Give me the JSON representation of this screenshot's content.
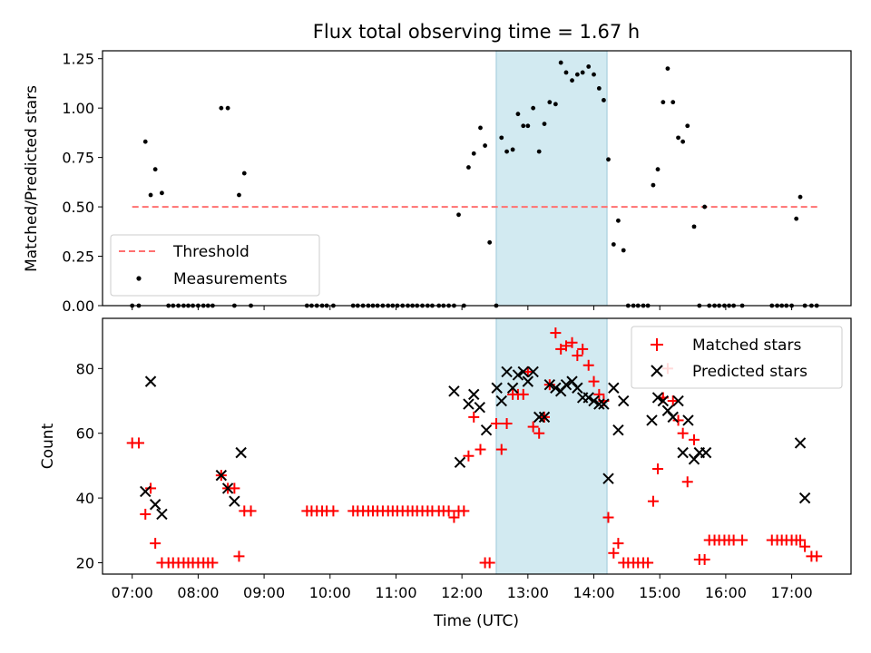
{
  "chart_data": [
    {
      "type": "scatter",
      "title": "Flux total observing time = 1.67 h",
      "xlabel": "",
      "ylabel": "Matched/Predicted stars",
      "xlim": [
        6.55,
        17.9
      ],
      "ylim": [
        0,
        1.29
      ],
      "yticks": [
        0,
        0.25,
        0.5,
        0.75,
        1.0,
        1.25
      ],
      "ytick_labels": [
        "0.00",
        "0.25",
        "0.50",
        "0.75",
        "1.00",
        "1.25"
      ],
      "highlight_span": [
        12.52,
        14.2
      ],
      "threshold": {
        "label": "Threshold",
        "value": 0.5,
        "x_start": 7.0,
        "x_end": 17.4,
        "color": "#ff7070"
      },
      "legend_position": "lower-left",
      "series": [
        {
          "name": "Measurements",
          "color": "#000000",
          "x": [
            7.0,
            7.1,
            7.2,
            7.28,
            7.35,
            7.45,
            7.55,
            7.62,
            7.7,
            7.78,
            7.85,
            7.92,
            8.0,
            8.08,
            8.15,
            8.22,
            8.35,
            8.45,
            8.55,
            8.62,
            8.7,
            8.8,
            9.65,
            9.72,
            9.8,
            9.88,
            9.95,
            10.05,
            10.35,
            10.42,
            10.5,
            10.58,
            10.65,
            10.72,
            10.8,
            10.88,
            10.95,
            11.02,
            11.1,
            11.18,
            11.25,
            11.32,
            11.4,
            11.48,
            11.55,
            11.65,
            11.72,
            11.8,
            11.88,
            11.95,
            12.03,
            12.1,
            12.18,
            12.28,
            12.35,
            12.42,
            12.52,
            12.6,
            12.68,
            12.77,
            12.85,
            12.93,
            13.0,
            13.08,
            13.17,
            13.25,
            13.33,
            13.42,
            13.5,
            13.58,
            13.67,
            13.75,
            13.83,
            13.92,
            14.0,
            14.08,
            14.15,
            14.22,
            14.3,
            14.37,
            14.45,
            14.52,
            14.6,
            14.67,
            14.75,
            14.82,
            14.9,
            14.97,
            15.05,
            15.12,
            15.2,
            15.28,
            15.35,
            15.42,
            15.52,
            15.6,
            15.68,
            15.75,
            15.83,
            15.9,
            15.98,
            16.05,
            16.12,
            16.25,
            16.7,
            16.78,
            16.85,
            16.92,
            17.0,
            17.07,
            17.13,
            17.2,
            17.3,
            17.38
          ],
          "y": [
            0,
            0,
            0.83,
            0.56,
            0.69,
            0.57,
            0,
            0,
            0,
            0,
            0,
            0,
            0,
            0,
            0,
            0,
            1.0,
            1.0,
            0,
            0.56,
            0.67,
            0,
            0,
            0,
            0,
            0,
            0,
            0,
            0,
            0,
            0,
            0,
            0,
            0,
            0,
            0,
            0,
            0,
            0,
            0,
            0,
            0,
            0,
            0,
            0,
            0,
            0,
            0,
            0,
            0.46,
            0,
            0.7,
            0.77,
            0.9,
            0.81,
            0.32,
            0,
            0.85,
            0.78,
            0.79,
            0.97,
            0.91,
            0.91,
            1.0,
            0.78,
            0.92,
            1.03,
            1.02,
            1.23,
            1.18,
            1.14,
            1.17,
            1.18,
            1.21,
            1.17,
            1.1,
            1.04,
            0.74,
            0.31,
            0.43,
            0.28,
            0,
            0,
            0,
            0,
            0,
            0.61,
            0.69,
            1.03,
            1.2,
            1.03,
            0.85,
            0.83,
            0.91,
            0.4,
            0,
            0.5,
            0,
            0,
            0,
            0,
            0,
            0,
            0,
            0,
            0,
            0,
            0,
            0,
            0.44,
            0.55,
            0,
            0,
            0
          ]
        }
      ]
    },
    {
      "type": "scatter",
      "title": "",
      "xlabel": "Time (UTC)",
      "ylabel": "Count",
      "xlim": [
        6.55,
        17.9
      ],
      "ylim": [
        16.5,
        95.5
      ],
      "yticks": [
        20,
        40,
        60,
        80
      ],
      "ytick_labels": [
        "20",
        "40",
        "60",
        "80"
      ],
      "xticks": [
        7,
        8,
        9,
        10,
        11,
        12,
        13,
        14,
        15,
        16,
        17
      ],
      "xtick_labels": [
        "07:00",
        "08:00",
        "09:00",
        "10:00",
        "11:00",
        "12:00",
        "13:00",
        "14:00",
        "15:00",
        "16:00",
        "17:00"
      ],
      "highlight_span": [
        12.52,
        14.2
      ],
      "legend_position": "upper-right",
      "series": [
        {
          "name": "Matched stars",
          "marker": "plus",
          "color": "#ff0000",
          "x": [
            7.0,
            7.1,
            7.2,
            7.28,
            7.35,
            7.45,
            7.55,
            7.62,
            7.7,
            7.78,
            7.85,
            7.92,
            8.0,
            8.08,
            8.15,
            8.22,
            8.35,
            8.45,
            8.55,
            8.62,
            8.7,
            8.8,
            9.65,
            9.72,
            9.8,
            9.88,
            9.95,
            10.05,
            10.35,
            10.42,
            10.5,
            10.58,
            10.65,
            10.72,
            10.8,
            10.88,
            10.95,
            11.02,
            11.1,
            11.18,
            11.25,
            11.32,
            11.4,
            11.48,
            11.55,
            11.65,
            11.72,
            11.8,
            11.88,
            11.95,
            12.03,
            12.1,
            12.18,
            12.28,
            12.35,
            12.42,
            12.52,
            12.6,
            12.68,
            12.77,
            12.85,
            12.93,
            13.0,
            13.08,
            13.17,
            13.25,
            13.33,
            13.42,
            13.5,
            13.58,
            13.67,
            13.75,
            13.83,
            13.92,
            14.0,
            14.08,
            14.15,
            14.22,
            14.3,
            14.37,
            14.45,
            14.52,
            14.6,
            14.67,
            14.75,
            14.82,
            14.9,
            14.97,
            15.05,
            15.12,
            15.2,
            15.28,
            15.35,
            15.42,
            15.52,
            15.6,
            15.68,
            15.75,
            15.83,
            15.9,
            15.98,
            16.05,
            16.12,
            16.25,
            16.7,
            16.78,
            16.85,
            16.92,
            17.0,
            17.07,
            17.13,
            17.2,
            17.3,
            17.38
          ],
          "y": [
            57,
            57,
            35,
            43,
            26,
            20,
            20,
            20,
            20,
            20,
            20,
            20,
            20,
            20,
            20,
            20,
            47,
            43,
            43,
            22,
            36,
            36,
            36,
            36,
            36,
            36,
            36,
            36,
            36,
            36,
            36,
            36,
            36,
            36,
            36,
            36,
            36,
            36,
            36,
            36,
            36,
            36,
            36,
            36,
            36,
            36,
            36,
            36,
            34,
            36,
            36,
            53,
            65,
            55,
            20,
            20,
            63,
            55,
            63,
            72,
            72,
            72,
            79,
            62,
            60,
            65,
            75,
            91,
            86,
            87,
            88,
            84,
            86,
            81,
            76,
            72,
            70,
            34,
            23,
            26,
            20,
            20,
            20,
            20,
            20,
            20,
            39,
            49,
            71,
            80,
            70,
            64,
            60,
            45,
            58,
            21,
            21,
            27,
            27,
            27,
            27,
            27,
            27,
            27,
            27,
            27,
            27,
            27,
            27,
            27,
            27,
            25,
            22,
            22
          ]
        },
        {
          "name": "Predicted stars",
          "marker": "x",
          "color": "#000000",
          "x": [
            7.2,
            7.28,
            7.35,
            7.45,
            8.35,
            8.45,
            8.55,
            8.65,
            11.88,
            11.97,
            12.1,
            12.18,
            12.27,
            12.37,
            12.53,
            12.6,
            12.68,
            12.77,
            12.85,
            12.93,
            13.0,
            13.08,
            13.17,
            13.25,
            13.33,
            13.42,
            13.5,
            13.58,
            13.67,
            13.75,
            13.83,
            13.92,
            14.0,
            14.08,
            14.15,
            14.22,
            14.3,
            14.37,
            14.45,
            14.88,
            14.97,
            15.05,
            15.12,
            15.2,
            15.28,
            15.35,
            15.43,
            15.52,
            15.6,
            15.7,
            17.13,
            17.2
          ],
          "y": [
            42,
            76,
            38,
            35,
            47,
            43,
            39,
            54,
            73,
            51,
            69,
            72,
            68,
            61,
            74,
            70,
            79,
            74,
            78,
            79,
            76,
            79,
            65,
            65,
            75,
            74,
            73,
            75,
            76,
            74,
            71,
            71,
            70,
            69,
            69,
            46,
            74,
            61,
            70,
            64,
            71,
            70,
            67,
            65,
            70,
            54,
            64,
            52,
            54,
            54,
            57,
            40
          ]
        }
      ]
    }
  ]
}
